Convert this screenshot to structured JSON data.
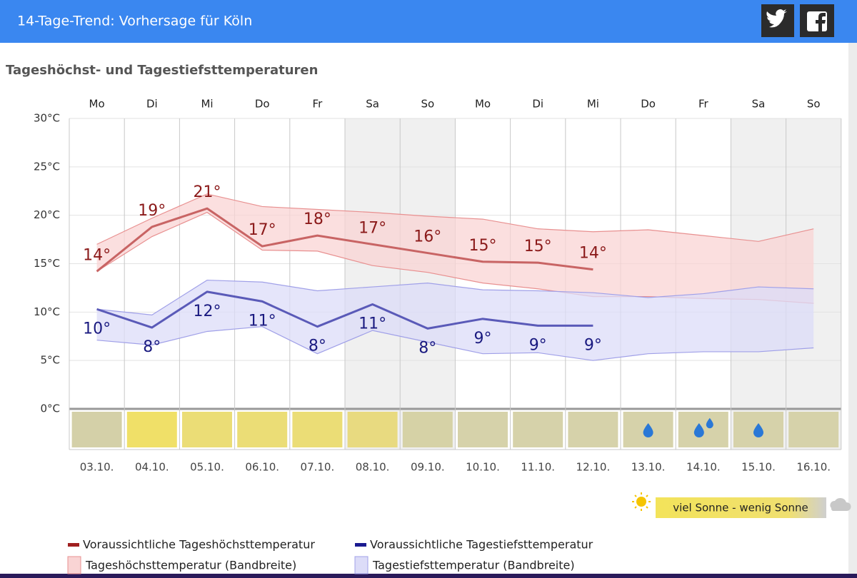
{
  "header": {
    "title": "14-Tage-Trend: Vorhersage für Köln"
  },
  "chart_data": {
    "type": "line",
    "title": "Tageshöchst- und Tagestiefsttemperaturen",
    "categories": [
      "Mo",
      "Di",
      "Mi",
      "Do",
      "Fr",
      "Sa",
      "So",
      "Mo",
      "Di",
      "Mi",
      "Do",
      "Fr",
      "Sa",
      "So"
    ],
    "dates": [
      "03.10.",
      "04.10.",
      "05.10.",
      "06.10.",
      "07.10.",
      "08.10.",
      "09.10.",
      "10.10.",
      "11.10.",
      "12.10.",
      "13.10.",
      "14.10.",
      "15.10.",
      "16.10."
    ],
    "ylim": [
      0,
      30
    ],
    "yticks": [
      {
        "value": 0,
        "label": "0°C"
      },
      {
        "value": 5,
        "label": "5°C"
      },
      {
        "value": 10,
        "label": "10°C"
      },
      {
        "value": 15,
        "label": "15°C"
      },
      {
        "value": 20,
        "label": "20°C"
      },
      {
        "value": 25,
        "label": "25°C"
      },
      {
        "value": 30,
        "label": "30°C"
      }
    ],
    "grid": true,
    "shaded_days": [
      5,
      6,
      12,
      13
    ],
    "series": [
      {
        "name": "Voraussichtliche Tageshöchsttemperatur",
        "color": "#c86464",
        "label_color": "#8b1a1a",
        "legend_color": "#a02020",
        "values": [
          14.2,
          18.8,
          20.7,
          16.8,
          17.9,
          17.0,
          16.1,
          15.2,
          15.1,
          14.4,
          null,
          null,
          null,
          null
        ],
        "value_labels": [
          "14°",
          "19°",
          "21°",
          "17°",
          "18°",
          "17°",
          "16°",
          "15°",
          "15°",
          "14°",
          null,
          null,
          null,
          null
        ]
      },
      {
        "name": "Voraussichtliche Tagestiefsttemperatur",
        "color": "#5a5ab8",
        "label_color": "#1a1a80",
        "legend_color": "#1a1a90",
        "values": [
          10.3,
          8.4,
          12.1,
          11.1,
          8.5,
          10.8,
          8.3,
          9.3,
          8.6,
          8.6,
          null,
          null,
          null,
          null
        ],
        "value_labels": [
          "10°",
          "8°",
          "12°",
          "11°",
          "8°",
          "11°",
          "8°",
          "9°",
          "9°",
          "9°",
          null,
          null,
          null,
          null
        ]
      }
    ],
    "bands": [
      {
        "name": "Tageshöchsttemperatur (Bandbreite)",
        "color": "#f9d4d4",
        "stroke": "#e89090",
        "upper": [
          17.0,
          19.7,
          22.2,
          20.9,
          20.6,
          20.3,
          19.9,
          19.6,
          18.6,
          18.3,
          18.5,
          17.9,
          17.3,
          18.6
        ],
        "lower": [
          14.2,
          17.8,
          20.3,
          16.4,
          16.3,
          14.8,
          14.1,
          13.0,
          12.4,
          11.6,
          11.6,
          11.4,
          11.3,
          10.9
        ]
      },
      {
        "name": "Tagestiefsttemperatur (Bandbreite)",
        "color": "#dcdcf8",
        "stroke": "#a0a0e8",
        "upper": [
          10.3,
          9.7,
          13.3,
          13.1,
          12.2,
          12.6,
          13.0,
          12.3,
          12.2,
          12.0,
          11.5,
          11.9,
          12.6,
          12.4
        ],
        "lower": [
          7.1,
          6.6,
          8.0,
          8.5,
          5.7,
          8.1,
          6.9,
          5.7,
          5.8,
          5.0,
          5.7,
          5.9,
          5.9,
          6.3
        ]
      }
    ],
    "sunshine_colors": [
      "#d4d0a8",
      "#f0e068",
      "#ebdd76",
      "#ebdd76",
      "#ebdd76",
      "#e8da80",
      "#d6d2a6",
      "#d6d2aa",
      "#d6d2aa",
      "#d6d2aa",
      "#d6d2aa",
      "#d6d2aa",
      "#d6d2aa",
      "#d6d2aa"
    ],
    "rain_drops": [
      0,
      0,
      0,
      0,
      0,
      0,
      0,
      0,
      0,
      0,
      1,
      2,
      1,
      0
    ],
    "sunshine_legend": "viel Sonne - wenig Sonne"
  }
}
